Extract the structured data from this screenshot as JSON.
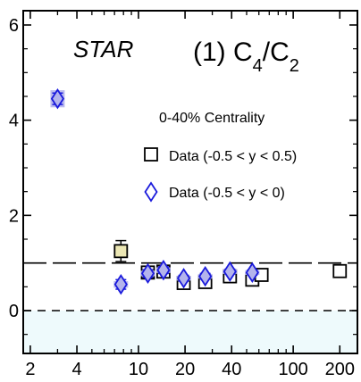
{
  "chart_data": {
    "type": "scatter",
    "title": "",
    "xlabel": "",
    "ylabel": "",
    "x_scale": "log",
    "xlim": [
      1.8,
      260
    ],
    "ylim": [
      -0.9,
      6.3
    ],
    "x_ticks": [
      {
        "value": 2,
        "label": "2"
      },
      {
        "value": 4,
        "label": "4"
      },
      {
        "value": 10,
        "label": "10"
      },
      {
        "value": 20,
        "label": "20"
      },
      {
        "value": 40,
        "label": "40"
      },
      {
        "value": 100,
        "label": "100"
      },
      {
        "value": 200,
        "label": "200"
      }
    ],
    "x_minor_ticks": [
      3,
      5,
      6,
      7,
      8,
      9,
      30,
      50,
      60,
      70,
      80,
      90
    ],
    "y_ticks": [
      {
        "value": 0,
        "label": "0"
      },
      {
        "value": 2,
        "label": "2"
      },
      {
        "value": 4,
        "label": "4"
      },
      {
        "value": 6,
        "label": "6"
      }
    ],
    "reference_lines": {
      "long_dash_y": 1,
      "short_dash_y": 0
    },
    "shaded_band": {
      "y_from": -0.9,
      "y_to": 0,
      "color": "#eefafc"
    },
    "annotations": {
      "experiment": "STAR",
      "panel_prefix": "(1) C",
      "panel_sub1": "4",
      "panel_mid": "/C",
      "panel_sub2": "2",
      "centrality": "0-40% Centrality"
    },
    "series": [
      {
        "name": "Data (-0.5 < y < 0.5)",
        "marker": "square",
        "color": "#000000",
        "points": [
          {
            "x": 7.7,
            "y": 1.25,
            "err": 0.22,
            "sys": 0.14,
            "fill": "#ece7b4"
          },
          {
            "x": 11.5,
            "y": 0.8,
            "err": 0.1,
            "sys": 0.06,
            "fill": "#ffffff"
          },
          {
            "x": 14.5,
            "y": 0.82,
            "err": 0.09,
            "sys": 0.06,
            "fill": "#ffffff"
          },
          {
            "x": 19.6,
            "y": 0.58,
            "err": 0.07,
            "sys": 0.05,
            "fill": "#ffffff"
          },
          {
            "x": 27,
            "y": 0.6,
            "err": 0.06,
            "sys": 0.05,
            "fill": "#ffffff"
          },
          {
            "x": 39,
            "y": 0.72,
            "err": 0.06,
            "sys": 0.05,
            "fill": "#ffffff"
          },
          {
            "x": 54.4,
            "y": 0.65,
            "err": 0.05,
            "sys": 0.05,
            "fill": "#ffffff"
          },
          {
            "x": 62.4,
            "y": 0.75,
            "err": 0.05,
            "sys": 0.05,
            "fill": "#ffffff"
          },
          {
            "x": 200,
            "y": 0.83,
            "err": 0.04,
            "sys": 0.04,
            "fill": "#ffffff"
          }
        ]
      },
      {
        "name": "Data (-0.5 < y < 0)",
        "marker": "diamond",
        "color": "#1a1adc",
        "points": [
          {
            "x": 3.0,
            "y": 4.45,
            "err": 0.12,
            "sys": 0.18,
            "fill": "#b4b4ec"
          },
          {
            "x": 7.7,
            "y": 0.55,
            "err": 0.1,
            "sys": 0.07,
            "fill": "#b4b4ec"
          },
          {
            "x": 11.5,
            "y": 0.78,
            "err": 0.08,
            "sys": 0.06,
            "fill": "#b4b4ec"
          },
          {
            "x": 14.5,
            "y": 0.85,
            "err": 0.07,
            "sys": 0.06,
            "fill": "#b4b4ec"
          },
          {
            "x": 19.6,
            "y": 0.68,
            "err": 0.06,
            "sys": 0.05,
            "fill": "#b4b4ec"
          },
          {
            "x": 27,
            "y": 0.72,
            "err": 0.06,
            "sys": 0.05,
            "fill": "#b4b4ec"
          },
          {
            "x": 39,
            "y": 0.82,
            "err": 0.05,
            "sys": 0.05,
            "fill": "#b4b4ec"
          },
          {
            "x": 54.4,
            "y": 0.8,
            "err": 0.05,
            "sys": 0.05,
            "fill": "#b4b4ec"
          }
        ]
      }
    ],
    "legend": {
      "position": "right",
      "entries": [
        "Data (-0.5 < y < 0.5)",
        "Data (-0.5 < y < 0)"
      ]
    },
    "grid": false
  }
}
